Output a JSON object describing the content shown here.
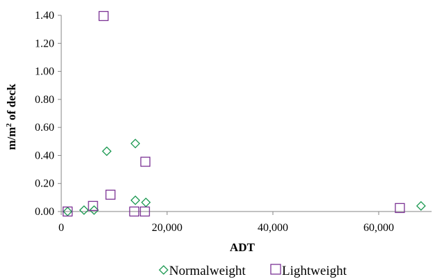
{
  "chart_data": {
    "type": "scatter",
    "title": "",
    "xlabel": "ADT",
    "ylabel_main": "m/m",
    "ylabel_sup": "2",
    "ylabel_rest": " of deck",
    "xlim": [
      0,
      70000
    ],
    "ylim": [
      0,
      1.4
    ],
    "x_ticks": [
      0,
      20000,
      40000,
      60000
    ],
    "x_tick_labels": [
      "0",
      "20,000",
      "40,000",
      "60,000"
    ],
    "y_ticks": [
      0,
      0.2,
      0.4,
      0.6,
      0.8,
      1.0,
      1.2,
      1.4
    ],
    "y_tick_labels": [
      "0.00",
      "0.20",
      "0.40",
      "0.60",
      "0.80",
      "1.00",
      "1.20",
      "1.40"
    ],
    "grid": false,
    "legend_position": "bottom",
    "series": [
      {
        "name": "Normalweight",
        "marker": "diamond",
        "color": "#1a9850",
        "points": [
          {
            "x": 1200,
            "y": 0.0
          },
          {
            "x": 4300,
            "y": 0.01
          },
          {
            "x": 6200,
            "y": 0.01
          },
          {
            "x": 8600,
            "y": 0.43
          },
          {
            "x": 14000,
            "y": 0.485
          },
          {
            "x": 14000,
            "y": 0.08
          },
          {
            "x": 16000,
            "y": 0.065
          },
          {
            "x": 68000,
            "y": 0.04
          }
        ]
      },
      {
        "name": "Lightweight",
        "marker": "square",
        "color": "#7b3294",
        "points": [
          {
            "x": 1200,
            "y": 0.0
          },
          {
            "x": 6000,
            "y": 0.04
          },
          {
            "x": 8000,
            "y": 1.395
          },
          {
            "x": 9300,
            "y": 0.12
          },
          {
            "x": 13800,
            "y": 0.0
          },
          {
            "x": 15800,
            "y": 0.0
          },
          {
            "x": 15900,
            "y": 0.355
          },
          {
            "x": 64000,
            "y": 0.025
          }
        ]
      }
    ]
  }
}
